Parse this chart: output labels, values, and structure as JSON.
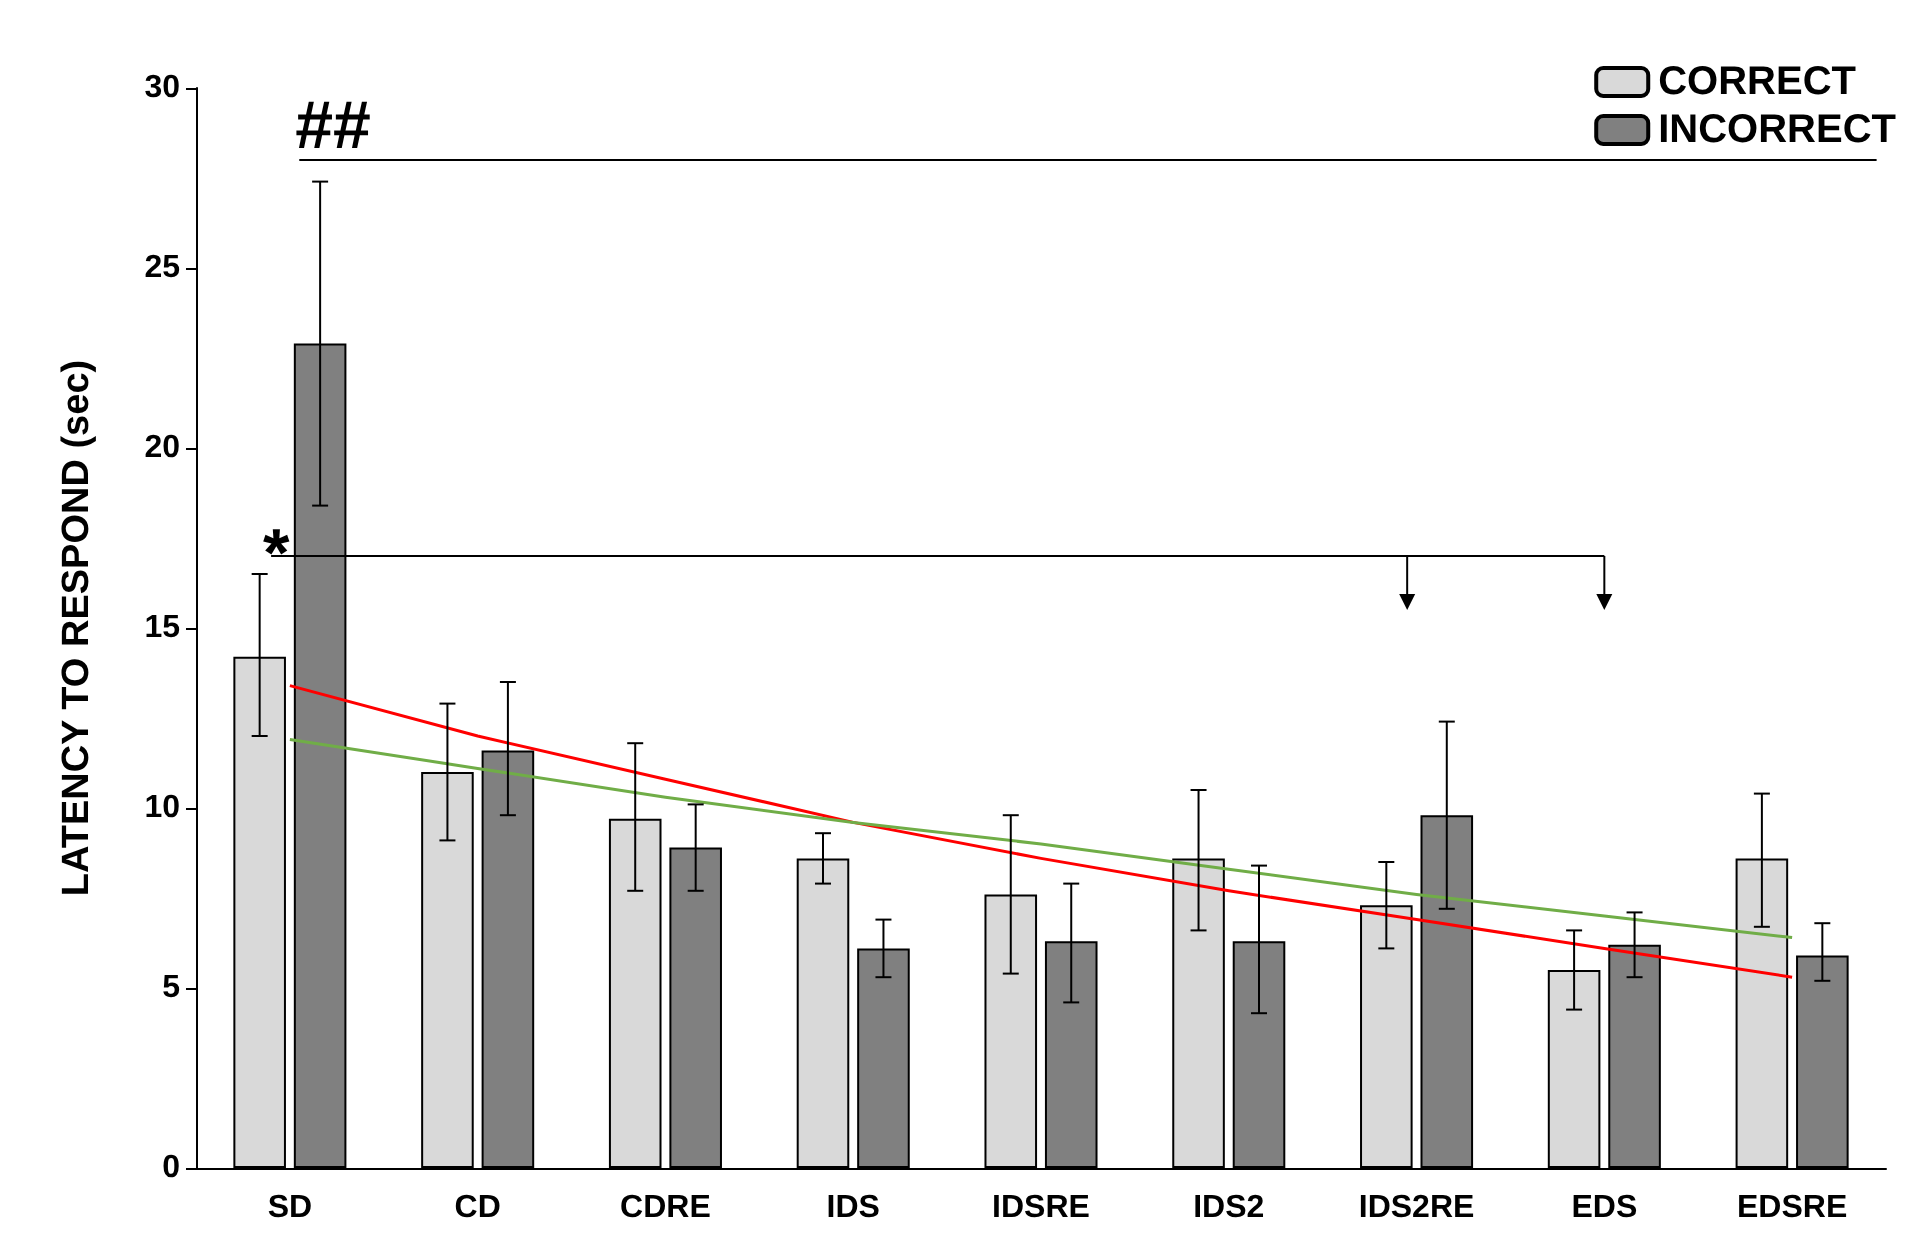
{
  "chart_data": {
    "type": "bar",
    "ylabel": "LATENCY TO RESPOND (sec)",
    "categories": [
      "SD",
      "CD",
      "CDRE",
      "IDS",
      "IDSRE",
      "IDS2",
      "IDS2RE",
      "EDS",
      "EDSRE"
    ],
    "series": [
      {
        "name": "CORRECT",
        "color": "#d9d9d9",
        "values": [
          14.2,
          11.0,
          9.7,
          8.6,
          7.6,
          8.6,
          7.3,
          5.5,
          8.6
        ],
        "errors": [
          [
            12.0,
            16.5
          ],
          [
            9.1,
            12.9
          ],
          [
            7.7,
            11.8
          ],
          [
            7.9,
            9.3
          ],
          [
            5.4,
            9.8
          ],
          [
            6.6,
            10.5
          ],
          [
            6.1,
            8.5
          ],
          [
            4.4,
            6.6
          ],
          [
            6.7,
            10.4
          ]
        ]
      },
      {
        "name": "INCORRECT",
        "color": "#808080",
        "values": [
          22.9,
          11.6,
          8.9,
          6.1,
          6.3,
          6.3,
          9.8,
          6.2,
          5.9
        ],
        "errors": [
          [
            18.4,
            27.4
          ],
          [
            9.8,
            13.5
          ],
          [
            7.7,
            10.1
          ],
          [
            5.3,
            6.9
          ],
          [
            4.6,
            7.9
          ],
          [
            4.3,
            8.4
          ],
          [
            7.2,
            12.4
          ],
          [
            5.3,
            7.1
          ],
          [
            5.2,
            6.8
          ]
        ]
      },
      {
        "type": "line",
        "color": "#ff0000",
        "marker": "none",
        "x": [
          "SD",
          "CD",
          "CDRE",
          "IDS",
          "IDSRE",
          "IDS2",
          "IDS2RE",
          "EDS",
          "EDSRE"
        ],
        "values": [
          13.4,
          12.0,
          10.8,
          9.6,
          8.6,
          7.7,
          6.9,
          6.1,
          5.3
        ]
      },
      {
        "type": "line",
        "color": "#70ad47",
        "marker": "none",
        "x": [
          "SD",
          "CD",
          "CDRE",
          "IDS",
          "IDSRE",
          "IDS2",
          "IDS2RE",
          "EDS",
          "EDSRE"
        ],
        "values": [
          11.9,
          11.1,
          10.3,
          9.6,
          9.0,
          8.3,
          7.6,
          7.0,
          6.4
        ]
      }
    ],
    "ylim": [
      0,
      30
    ],
    "yticks": [
      0,
      5,
      10,
      15,
      20,
      25,
      30
    ],
    "grid": false,
    "legend": "top right",
    "ref_lines": [
      {
        "axis": "y",
        "value": 28,
        "label": "##",
        "color": "#000000"
      },
      {
        "axis": "y",
        "value": 17,
        "label": "*",
        "color": "#000000"
      }
    ]
  }
}
